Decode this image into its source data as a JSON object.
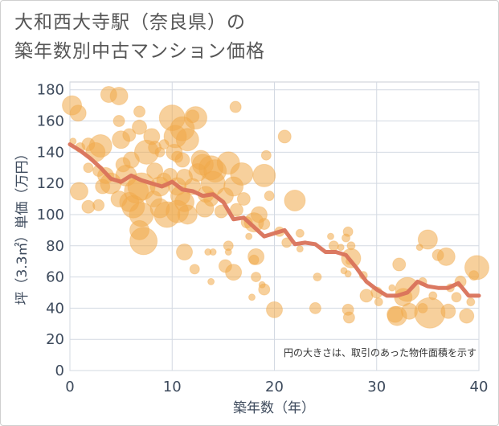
{
  "title_line1": "大和西大寺駅（奈良県）の",
  "title_line2": "築年数別中古マンション価格",
  "chart_data": {
    "type": "scatter",
    "xlabel": "築年数（年）",
    "ylabel": "坪（3.3㎡）単価（万円）",
    "xlim": [
      0,
      40
    ],
    "ylim": [
      0,
      185
    ],
    "xticks": [
      0,
      10,
      20,
      30,
      40
    ],
    "yticks": [
      0,
      20,
      40,
      60,
      80,
      100,
      120,
      140,
      160,
      180
    ],
    "grid": true,
    "note": "円の大きさは、取引のあった物件面積を示す",
    "colors": {
      "bubble": "#f0a94a",
      "line": "#d9725a"
    },
    "bubbles": [
      {
        "x": 0.2,
        "y": 170,
        "r": 12
      },
      {
        "x": 0.8,
        "y": 165,
        "r": 10
      },
      {
        "x": 0.3,
        "y": 147,
        "r": 4
      },
      {
        "x": 1.0,
        "y": 143,
        "r": 6
      },
      {
        "x": 1.8,
        "y": 145,
        "r": 8
      },
      {
        "x": 2.5,
        "y": 140,
        "r": 12
      },
      {
        "x": 3.0,
        "y": 144,
        "r": 14
      },
      {
        "x": 1.8,
        "y": 130,
        "r": 6
      },
      {
        "x": 2.8,
        "y": 128,
        "r": 7
      },
      {
        "x": 3.5,
        "y": 125,
        "r": 10
      },
      {
        "x": 0.9,
        "y": 115,
        "r": 11
      },
      {
        "x": 1.8,
        "y": 105,
        "r": 8
      },
      {
        "x": 2.8,
        "y": 106,
        "r": 7
      },
      {
        "x": 3.2,
        "y": 118,
        "r": 9
      },
      {
        "x": 4.0,
        "y": 120,
        "r": 13
      },
      {
        "x": 3.8,
        "y": 177,
        "r": 10
      },
      {
        "x": 4.8,
        "y": 176,
        "r": 11
      },
      {
        "x": 4.8,
        "y": 160,
        "r": 7
      },
      {
        "x": 5.0,
        "y": 148,
        "r": 11
      },
      {
        "x": 5.8,
        "y": 151,
        "r": 8
      },
      {
        "x": 6.8,
        "y": 166,
        "r": 7
      },
      {
        "x": 6.8,
        "y": 156,
        "r": 9
      },
      {
        "x": 5.2,
        "y": 132,
        "r": 9
      },
      {
        "x": 6.0,
        "y": 135,
        "r": 10
      },
      {
        "x": 5.5,
        "y": 125,
        "r": 13
      },
      {
        "x": 4.8,
        "y": 110,
        "r": 10
      },
      {
        "x": 5.8,
        "y": 108,
        "r": 12
      },
      {
        "x": 6.2,
        "y": 105,
        "r": 14
      },
      {
        "x": 6.5,
        "y": 115,
        "r": 15
      },
      {
        "x": 7.0,
        "y": 118,
        "r": 17
      },
      {
        "x": 7.0,
        "y": 100,
        "r": 15
      },
      {
        "x": 6.8,
        "y": 90,
        "r": 12
      },
      {
        "x": 7.2,
        "y": 83,
        "r": 17
      },
      {
        "x": 7.5,
        "y": 140,
        "r": 15
      },
      {
        "x": 8.0,
        "y": 150,
        "r": 10
      },
      {
        "x": 8.3,
        "y": 143,
        "r": 8
      },
      {
        "x": 8.8,
        "y": 140,
        "r": 6
      },
      {
        "x": 9.2,
        "y": 145,
        "r": 6
      },
      {
        "x": 8.3,
        "y": 128,
        "r": 10
      },
      {
        "x": 8.8,
        "y": 118,
        "r": 12
      },
      {
        "x": 9.2,
        "y": 122,
        "r": 9
      },
      {
        "x": 9.8,
        "y": 125,
        "r": 9
      },
      {
        "x": 8.2,
        "y": 110,
        "r": 10
      },
      {
        "x": 8.8,
        "y": 104,
        "r": 12
      },
      {
        "x": 9.5,
        "y": 100,
        "r": 16
      },
      {
        "x": 10.0,
        "y": 162,
        "r": 16
      },
      {
        "x": 10.3,
        "y": 150,
        "r": 14
      },
      {
        "x": 11.0,
        "y": 155,
        "r": 15
      },
      {
        "x": 11.5,
        "y": 148,
        "r": 14
      },
      {
        "x": 12.0,
        "y": 163,
        "r": 8
      },
      {
        "x": 10.2,
        "y": 140,
        "r": 10
      },
      {
        "x": 10.5,
        "y": 137,
        "r": 7
      },
      {
        "x": 11.0,
        "y": 135,
        "r": 9
      },
      {
        "x": 11.2,
        "y": 124,
        "r": 10
      },
      {
        "x": 10.5,
        "y": 118,
        "r": 11
      },
      {
        "x": 10.8,
        "y": 112,
        "r": 12
      },
      {
        "x": 11.2,
        "y": 108,
        "r": 12
      },
      {
        "x": 10.5,
        "y": 102,
        "r": 14
      },
      {
        "x": 11.5,
        "y": 100,
        "r": 12
      },
      {
        "x": 12.0,
        "y": 118,
        "r": 10
      },
      {
        "x": 12.5,
        "y": 127,
        "r": 11
      },
      {
        "x": 12.8,
        "y": 135,
        "r": 12
      },
      {
        "x": 12.3,
        "y": 162,
        "r": 14
      },
      {
        "x": 13.0,
        "y": 132,
        "r": 13
      },
      {
        "x": 13.3,
        "y": 113,
        "r": 10
      },
      {
        "x": 13.8,
        "y": 130,
        "r": 15
      },
      {
        "x": 14.2,
        "y": 128,
        "r": 14
      },
      {
        "x": 14.0,
        "y": 120,
        "r": 15
      },
      {
        "x": 13.2,
        "y": 104,
        "r": 11
      },
      {
        "x": 13.8,
        "y": 110,
        "r": 9
      },
      {
        "x": 14.8,
        "y": 102,
        "r": 8
      },
      {
        "x": 15.5,
        "y": 133,
        "r": 14
      },
      {
        "x": 15.2,
        "y": 112,
        "r": 10
      },
      {
        "x": 16.0,
        "y": 118,
        "r": 12
      },
      {
        "x": 16.3,
        "y": 103,
        "r": 8
      },
      {
        "x": 16.2,
        "y": 169,
        "r": 7
      },
      {
        "x": 16.8,
        "y": 126,
        "r": 14
      },
      {
        "x": 17.0,
        "y": 110,
        "r": 8
      },
      {
        "x": 17.3,
        "y": 95,
        "r": 7
      },
      {
        "x": 17.5,
        "y": 86,
        "r": 4
      },
      {
        "x": 18.0,
        "y": 95,
        "r": 12
      },
      {
        "x": 18.5,
        "y": 100,
        "r": 10
      },
      {
        "x": 19.0,
        "y": 125,
        "r": 14
      },
      {
        "x": 19.2,
        "y": 138,
        "r": 6
      },
      {
        "x": 19.5,
        "y": 112,
        "r": 6
      },
      {
        "x": 19.0,
        "y": 94,
        "r": 7
      },
      {
        "x": 18.2,
        "y": 73,
        "r": 10
      },
      {
        "x": 18.0,
        "y": 71,
        "r": 6
      },
      {
        "x": 15.5,
        "y": 80,
        "r": 6
      },
      {
        "x": 15.5,
        "y": 76,
        "r": 4
      },
      {
        "x": 14.0,
        "y": 76,
        "r": 4
      },
      {
        "x": 13.5,
        "y": 76,
        "r": 4
      },
      {
        "x": 11.2,
        "y": 76,
        "r": 10
      },
      {
        "x": 12.2,
        "y": 65,
        "r": 6
      },
      {
        "x": 15.2,
        "y": 67,
        "r": 8
      },
      {
        "x": 16.0,
        "y": 63,
        "r": 10
      },
      {
        "x": 13.8,
        "y": 57,
        "r": 4
      },
      {
        "x": 18.2,
        "y": 60,
        "r": 6
      },
      {
        "x": 18.8,
        "y": 55,
        "r": 4
      },
      {
        "x": 19.0,
        "y": 52,
        "r": 7
      },
      {
        "x": 17.8,
        "y": 47,
        "r": 4
      },
      {
        "x": 20.0,
        "y": 39,
        "r": 10
      },
      {
        "x": 20.5,
        "y": 89,
        "r": 6
      },
      {
        "x": 21.0,
        "y": 150,
        "r": 8
      },
      {
        "x": 21.2,
        "y": 82,
        "r": 6
      },
      {
        "x": 22.0,
        "y": 109,
        "r": 13
      },
      {
        "x": 22.5,
        "y": 88,
        "r": 5
      },
      {
        "x": 22.5,
        "y": 78,
        "r": 4
      },
      {
        "x": 24.2,
        "y": 60,
        "r": 5
      },
      {
        "x": 24.0,
        "y": 40,
        "r": 7
      },
      {
        "x": 25.5,
        "y": 86,
        "r": 4
      },
      {
        "x": 25.8,
        "y": 80,
        "r": 6
      },
      {
        "x": 26.5,
        "y": 79,
        "r": 4
      },
      {
        "x": 26.8,
        "y": 64,
        "r": 4
      },
      {
        "x": 27.3,
        "y": 70,
        "r": 4
      },
      {
        "x": 27.2,
        "y": 62,
        "r": 4
      },
      {
        "x": 27.2,
        "y": 89,
        "r": 6
      },
      {
        "x": 27.0,
        "y": 85,
        "r": 5
      },
      {
        "x": 27.5,
        "y": 80,
        "r": 5
      },
      {
        "x": 27.5,
        "y": 72,
        "r": 12
      },
      {
        "x": 27.2,
        "y": 39,
        "r": 7
      },
      {
        "x": 27.3,
        "y": 34,
        "r": 7
      },
      {
        "x": 28.7,
        "y": 61,
        "r": 5
      },
      {
        "x": 29.0,
        "y": 48,
        "r": 8
      },
      {
        "x": 30.0,
        "y": 50,
        "r": 7
      },
      {
        "x": 30.2,
        "y": 44,
        "r": 5
      },
      {
        "x": 31.5,
        "y": 53,
        "r": 4
      },
      {
        "x": 31.8,
        "y": 36,
        "r": 10
      },
      {
        "x": 32.0,
        "y": 35,
        "r": 12
      },
      {
        "x": 32.2,
        "y": 68,
        "r": 8
      },
      {
        "x": 32.6,
        "y": 47,
        "r": 11
      },
      {
        "x": 33.0,
        "y": 52,
        "r": 15
      },
      {
        "x": 33.2,
        "y": 38,
        "r": 10
      },
      {
        "x": 34.2,
        "y": 79,
        "r": 4
      },
      {
        "x": 34.5,
        "y": 40,
        "r": 6
      },
      {
        "x": 34.5,
        "y": 57,
        "r": 5
      },
      {
        "x": 35.0,
        "y": 84,
        "r": 12
      },
      {
        "x": 35.2,
        "y": 37,
        "r": 19
      },
      {
        "x": 35.5,
        "y": 48,
        "r": 5
      },
      {
        "x": 36.0,
        "y": 74,
        "r": 7
      },
      {
        "x": 36.8,
        "y": 73,
        "r": 11
      },
      {
        "x": 37.0,
        "y": 38,
        "r": 9
      },
      {
        "x": 37.2,
        "y": 53,
        "r": 5
      },
      {
        "x": 37.8,
        "y": 47,
        "r": 6
      },
      {
        "x": 38.2,
        "y": 57,
        "r": 7
      },
      {
        "x": 38.8,
        "y": 35,
        "r": 9
      },
      {
        "x": 39.2,
        "y": 44,
        "r": 5
      },
      {
        "x": 39.5,
        "y": 61,
        "r": 6
      },
      {
        "x": 39.8,
        "y": 66,
        "r": 15
      }
    ],
    "line": {
      "x": [
        0,
        1,
        2,
        3,
        4,
        5,
        6,
        7,
        8,
        9,
        10,
        11,
        12,
        13,
        14,
        15,
        16,
        17,
        18,
        19,
        20,
        21,
        22,
        23,
        24,
        25,
        26,
        27,
        28,
        29,
        30,
        31,
        32,
        33,
        34,
        35,
        36,
        37,
        38,
        39,
        40
      ],
      "y": [
        145,
        141,
        136,
        130,
        123,
        121,
        125,
        122,
        120,
        118,
        121,
        116,
        115,
        112,
        113,
        108,
        97,
        98,
        92,
        86,
        88,
        90,
        81,
        82,
        81,
        76,
        76,
        74,
        66,
        57,
        52,
        48,
        48,
        50,
        57,
        54,
        53,
        53,
        56,
        48,
        48
      ]
    }
  }
}
